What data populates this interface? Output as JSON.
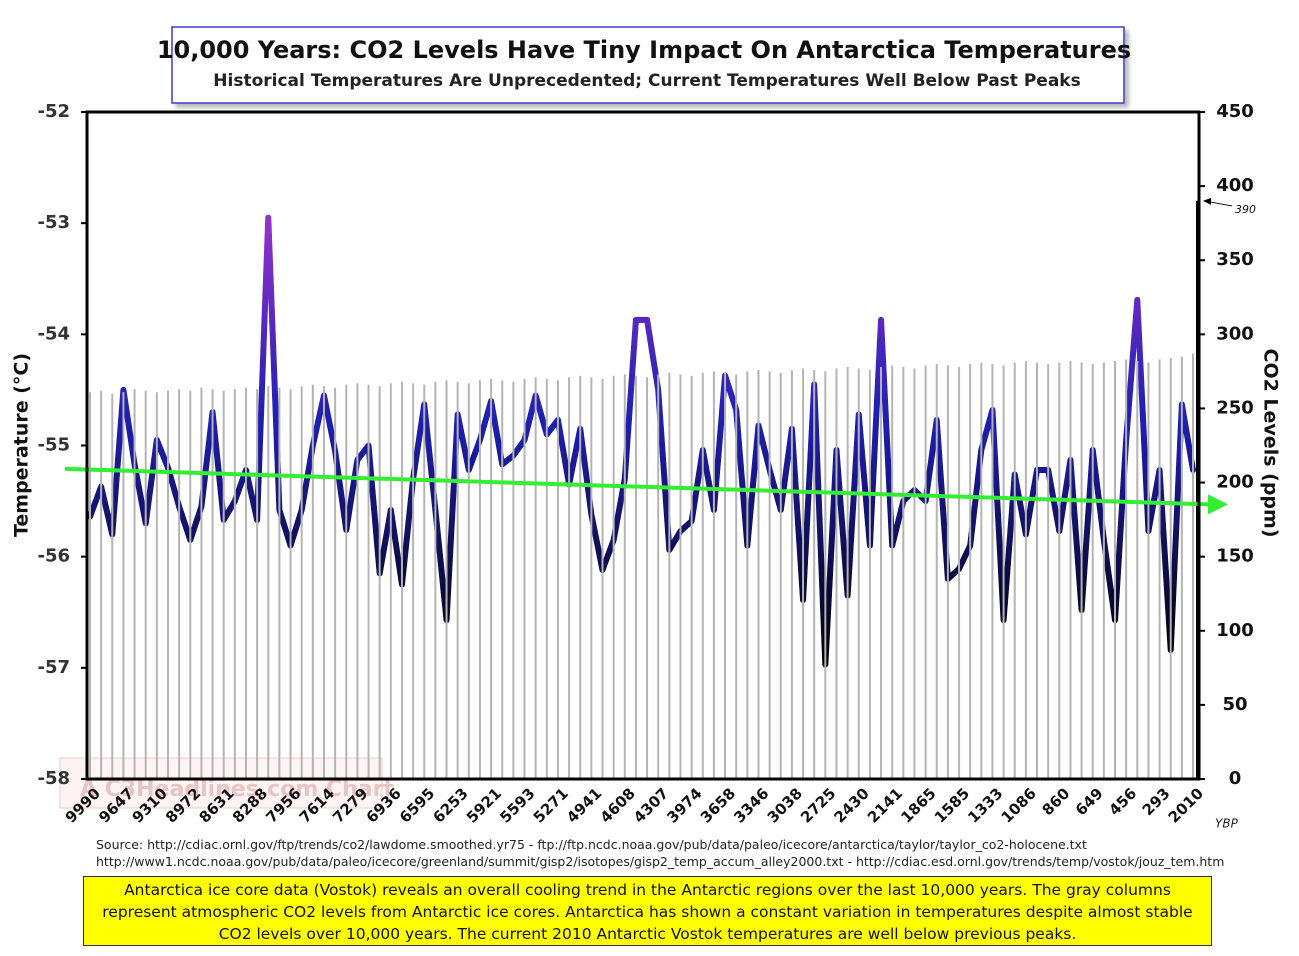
{
  "chart_data": {
    "type": "line",
    "title": "10,000 Years: CO2 Levels Have Tiny Impact On Antarctica Temperatures",
    "subtitle": "Historical Temperatures Are Unprecedented; Current Temperatures Well Below Past Peaks",
    "y_label": "Temperature (°C)",
    "y2_label": "CO2 Levels (ppm)",
    "x_unit": "YBP",
    "categories": [
      "9990",
      null,
      null,
      "9647",
      null,
      null,
      "9310",
      null,
      null,
      "8972",
      null,
      null,
      "8631",
      null,
      null,
      "8288",
      null,
      null,
      "7956",
      null,
      null,
      "7614",
      null,
      null,
      "7279",
      null,
      null,
      "6936",
      null,
      null,
      "6595",
      null,
      null,
      "6253",
      null,
      null,
      "5921",
      null,
      null,
      "5593",
      null,
      null,
      "5271",
      null,
      null,
      "4941",
      null,
      null,
      "4608",
      null,
      null,
      "4307",
      null,
      null,
      "3974",
      null,
      null,
      "3658",
      null,
      null,
      "3346",
      null,
      null,
      "3038",
      null,
      null,
      "2725",
      null,
      null,
      "2430",
      null,
      null,
      "2141",
      null,
      null,
      "1865",
      null,
      null,
      "1585",
      null,
      null,
      "1333",
      null,
      null,
      "1086",
      null,
      null,
      "860",
      null,
      null,
      "649",
      null,
      null,
      "456",
      null,
      null,
      "293",
      null,
      null,
      "2010"
    ],
    "series": [
      {
        "color": "#1f1fb4",
        "peak_color": "#9933cc",
        "trough_color": "#000000",
        "values": [
          -55.64,
          -55.37,
          -55.8,
          -54.5,
          -55.17,
          -55.7,
          -54.95,
          -55.2,
          -55.55,
          -55.85,
          -55.55,
          -54.7,
          -55.67,
          -55.5,
          -55.22,
          -55.67,
          -52.95,
          -55.58,
          -55.9,
          -55.58,
          -55.0,
          -54.55,
          -55.05,
          -55.76,
          -55.13,
          -55.0,
          -56.15,
          -55.58,
          -56.25,
          -55.3,
          -54.63,
          -55.58,
          -56.57,
          -54.72,
          -55.22,
          -54.95,
          -54.6,
          -55.17,
          -55.09,
          -54.95,
          -54.55,
          -54.9,
          -54.77,
          -55.35,
          -54.85,
          -55.62,
          -56.12,
          -55.85,
          -55.3,
          -53.87,
          -53.87,
          -54.5,
          -55.94,
          -55.77,
          -55.68,
          -55.04,
          -55.58,
          -54.37,
          -54.68,
          -55.9,
          -54.82,
          -55.22,
          -55.58,
          -54.85,
          -56.39,
          -54.45,
          -56.97,
          -55.04,
          -56.35,
          -54.72,
          -55.9,
          -53.87,
          -55.9,
          -55.5,
          -55.4,
          -55.5,
          -54.77,
          -56.2,
          -56.11,
          -55.9,
          -55.04,
          -54.68,
          -56.57,
          -55.26,
          -55.8,
          -55.22,
          -55.22,
          -55.77,
          -55.13,
          -56.48,
          -55.04,
          -55.85,
          -56.57,
          -54.95,
          -53.69,
          -55.77,
          -55.22,
          -56.84,
          -54.63,
          -55.22
        ]
      },
      {
        "axis": "y2",
        "color": "#b4b4b4",
        "values": [
          261,
          262,
          260,
          261,
          263,
          262,
          261,
          262,
          263,
          262,
          264,
          263,
          262,
          263,
          264,
          263,
          265,
          264,
          263,
          265,
          266,
          265,
          264,
          266,
          267,
          266,
          265,
          267,
          268,
          267,
          266,
          268,
          269,
          268,
          267,
          269,
          270,
          269,
          268,
          270,
          271,
          270,
          269,
          271,
          272,
          271,
          270,
          272,
          273,
          272,
          271,
          273,
          274,
          273,
          272,
          274,
          275,
          274,
          273,
          275,
          276,
          275,
          274,
          276,
          277,
          276,
          275,
          277,
          278,
          277,
          276,
          278,
          279,
          278,
          277,
          279,
          280,
          279,
          278,
          280,
          281,
          280,
          279,
          281,
          282,
          281,
          280,
          281,
          282,
          281,
          280,
          281,
          282,
          283,
          282,
          281,
          283,
          284,
          285,
          287
        ]
      }
    ],
    "trend": {
      "color": "#33ee33",
      "values": [
        -55.21,
        -55.53
      ]
    },
    "current_co2": 390,
    "ylim": [
      -58,
      -52
    ],
    "yticks": [
      -58,
      -57,
      -56,
      -55,
      -54,
      -53,
      -52
    ],
    "y2lim": [
      0,
      450
    ],
    "y2ticks": [
      0,
      50,
      100,
      150,
      200,
      250,
      300,
      350,
      400,
      450
    ],
    "sources": [
      "Source:  http://cdiac.ornl.gov/ftp/trends/co2/lawdome.smoothed.yr75  -  ftp://ftp.ncdc.noaa.gov/pub/data/paleo/icecore/antarctica/taylor/taylor_co2-holocene.txt",
      "http://www1.ncdc.noaa.gov/pub/data/paleo/icecore/greenland/summit/gisp2/isotopes/gisp2_temp_accum_alley2000.txt  -  http://cdiac.esd.ornl.gov/trends/temp/vostok/jouz_tem.htm"
    ],
    "note": "Antarctica ice core data (Vostok) reveals an overall cooling trend in the Antarctic regions over the last 10,000 years. The gray columns represent atmospheric CO2 levels from Antarctic ice cores. Antarctica has shown a constant variation in temperatures despite almost stable CO2 levels over 10,000 years. The current 2010 Antarctic Vostok temperatures are well below previous peaks.",
    "watermark": "A C3Headlines.com Chart"
  }
}
